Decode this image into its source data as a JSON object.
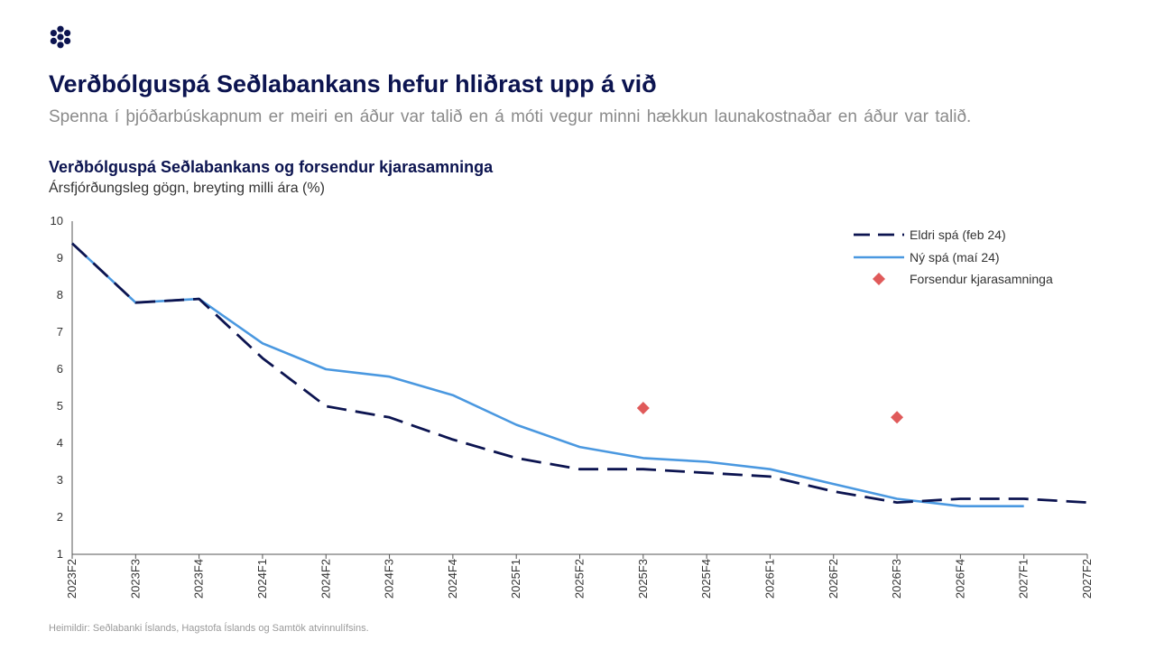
{
  "header": {
    "logo_icon": "seven-dot-flower-icon",
    "title": "Verðbólguspá Seðlabankans hefur hliðrast upp á við",
    "subtitle": "Spenna í þjóðarbúskapnum er meiri en áður var talið en á móti vegur minni hækkun launakostnaðar en áður var talið."
  },
  "source": "Heimildir: Seðlabanki Íslands, Hagstofa Íslands og Samtök atvinnulífsins.",
  "colors": {
    "navy": "#0c1450",
    "blue": "#4a98e0",
    "red": "#e05a5a"
  },
  "chart_data": {
    "type": "line",
    "title": "Verðbólguspá Seðlabankans og forsendur kjarasamninga",
    "subtitle": "Ársfjórðungsleg gögn, breyting milli ára (%)",
    "categories": [
      "2023F2",
      "2023F3",
      "2023F4",
      "2024F1",
      "2024F2",
      "2024F3",
      "2024F4",
      "2025F1",
      "2025F2",
      "2025F3",
      "2025F4",
      "2026F1",
      "2026F2",
      "2026F3",
      "2026F4",
      "2027F1",
      "2027F2"
    ],
    "ylim": [
      1,
      10
    ],
    "yticks": [
      1,
      2,
      3,
      4,
      5,
      6,
      7,
      8,
      9,
      10
    ],
    "grid": false,
    "legend_position": "top-right",
    "series": [
      {
        "name": "Eldri spá (feb 24)",
        "style": "dashed",
        "color": "#0c1450",
        "values": [
          9.4,
          7.8,
          7.9,
          6.3,
          5.0,
          4.7,
          4.1,
          3.6,
          3.3,
          3.3,
          3.2,
          3.1,
          2.7,
          2.4,
          2.5,
          2.5,
          2.4
        ]
      },
      {
        "name": "Ný spá (maí 24)",
        "style": "solid",
        "color": "#4a98e0",
        "values": [
          9.4,
          7.8,
          7.9,
          6.7,
          6.0,
          5.8,
          5.3,
          4.5,
          3.9,
          3.6,
          3.5,
          3.3,
          2.9,
          2.5,
          2.3,
          2.3,
          null
        ]
      },
      {
        "name": "Forsendur kjarasamninga",
        "style": "marker",
        "marker": "diamond",
        "color": "#e05a5a",
        "points": [
          {
            "x": "2025F3",
            "y": 4.95
          },
          {
            "x": "2026F3",
            "y": 4.7
          }
        ]
      }
    ]
  }
}
